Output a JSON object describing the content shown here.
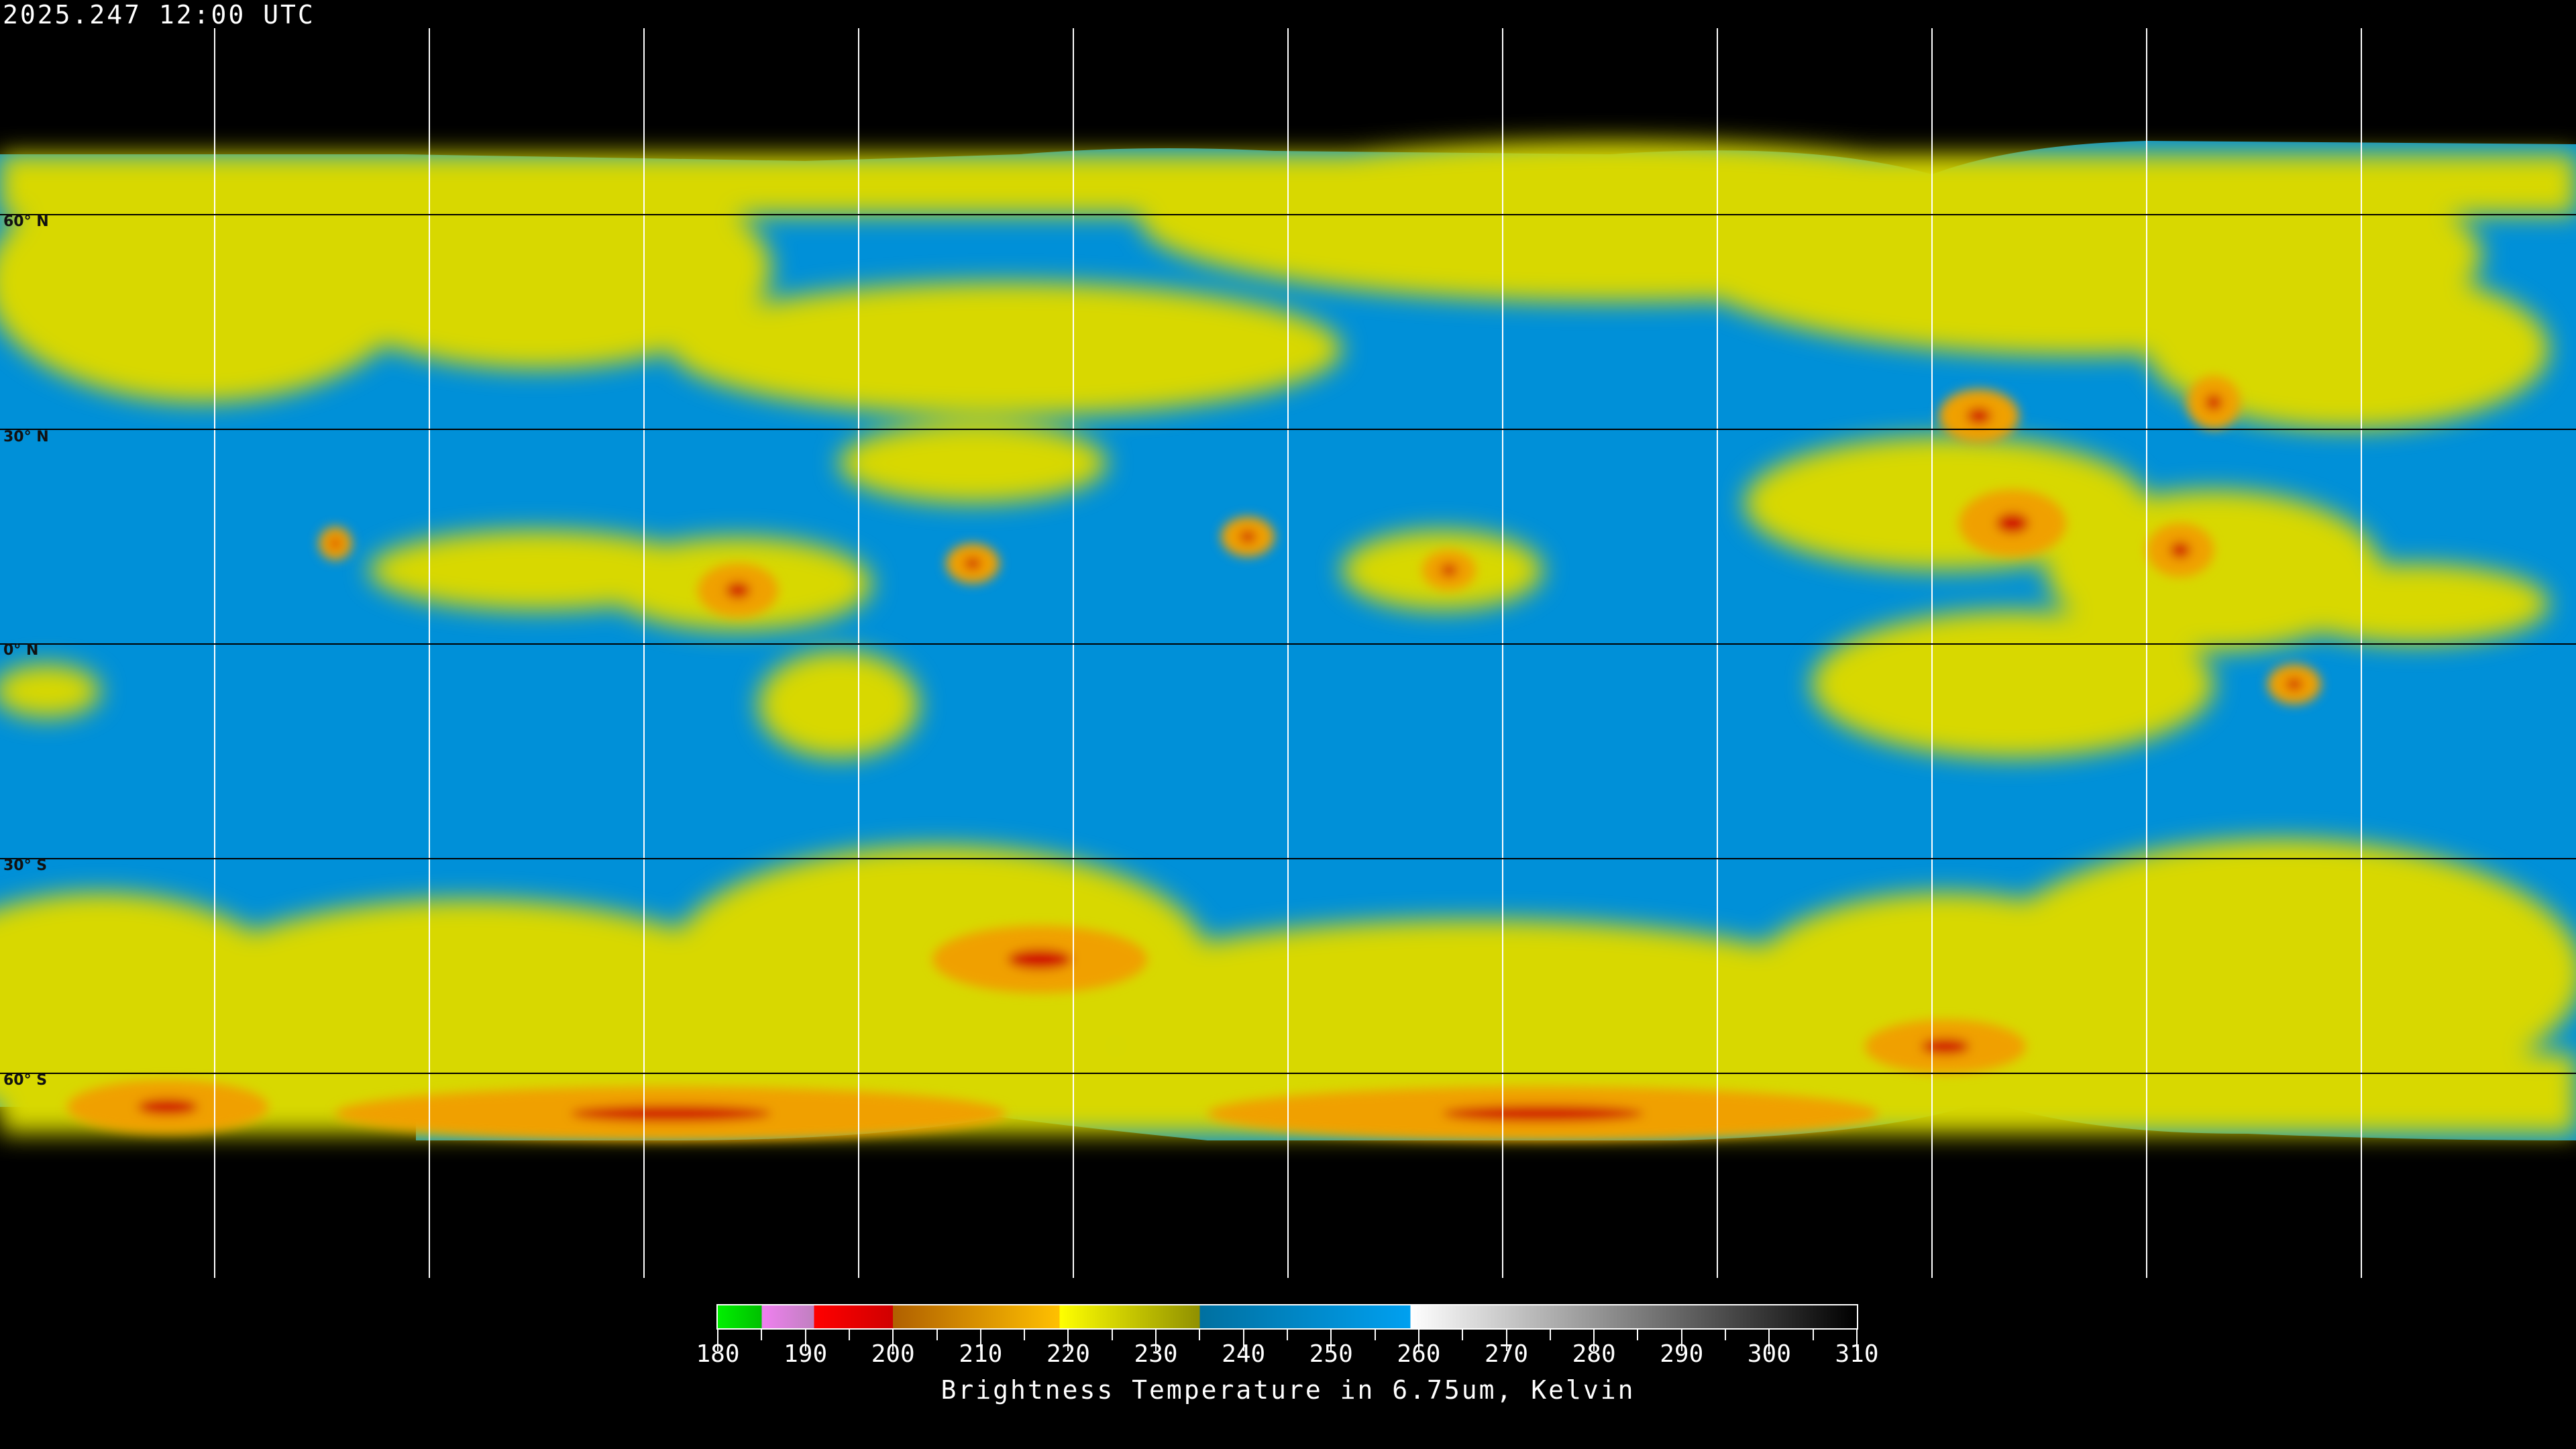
{
  "header": {
    "timestamp": "2025.247 12:00 UTC"
  },
  "map": {
    "projection": "equirectangular",
    "latitude_labels": [
      "60° N",
      "30° N",
      "0° N",
      "30° S",
      "60° S"
    ],
    "colors": {
      "background": "#000000",
      "clear_sky": "#0090d8",
      "moist": "#d8d800",
      "cold": "#f0a000",
      "deep_convection": "#d00000",
      "grid": "#000000",
      "coastline": "#000000"
    }
  },
  "colorbar": {
    "ticks": [
      "180",
      "190",
      "200",
      "210",
      "220",
      "230",
      "240",
      "250",
      "260",
      "270",
      "280",
      "290",
      "300",
      "310"
    ],
    "range": [
      180,
      310
    ],
    "title": "Brightness Temperature in 6.75um, Kelvin"
  }
}
